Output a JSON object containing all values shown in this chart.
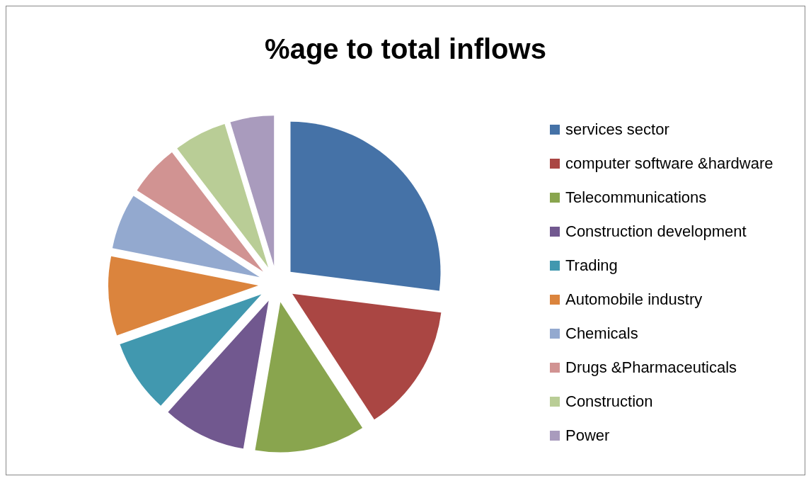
{
  "chart_data": {
    "type": "pie",
    "title": "%age to total inflows",
    "categories": [
      "services sector",
      "computer software &hardware",
      "Telecommunications",
      "Construction development",
      "Trading",
      "Automobile industry",
      "Chemicals",
      "Drugs &Pharmaceuticals",
      "Construction",
      "Power"
    ],
    "values": [
      27,
      13.8,
      11.9,
      9,
      7.9,
      8.5,
      6,
      5.5,
      5.7,
      4.7
    ],
    "colors": [
      "#4572a7",
      "#aa4643",
      "#89a54e",
      "#71588f",
      "#4198af",
      "#db843d",
      "#93a9cf",
      "#d19392",
      "#b9cd96",
      "#a99bbd"
    ],
    "legend": "right"
  }
}
